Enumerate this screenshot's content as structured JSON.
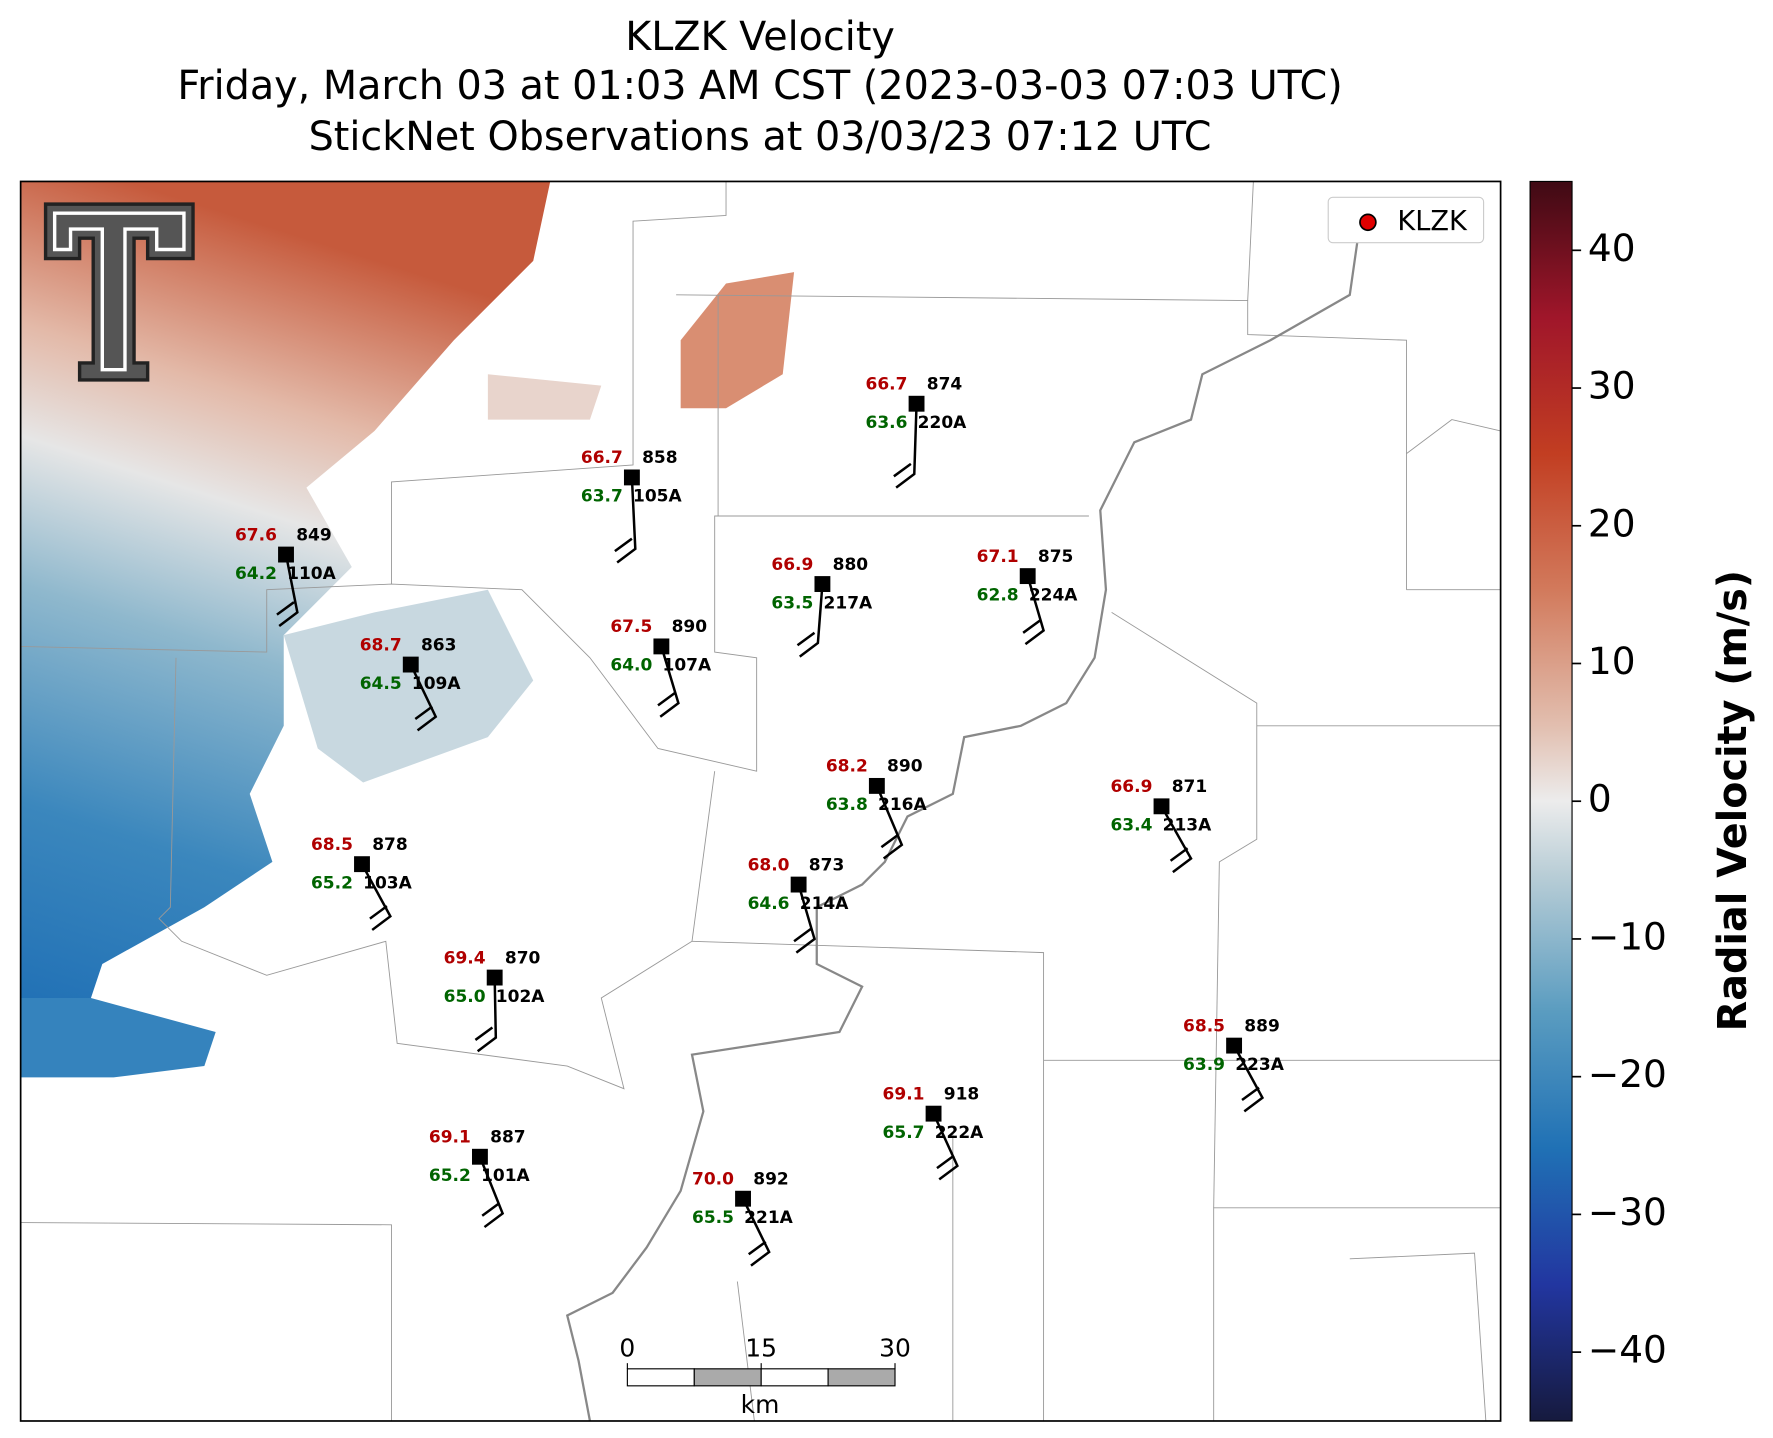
{
  "title_lines": [
    "KLZK Velocity",
    "Friday, March 03 at 01:03 AM CST (2023-03-03 07:03 UTC)",
    "StickNet Observations at 03/03/23 07:12 UTC"
  ],
  "legend": {
    "label": "KLZK",
    "color": "#e00000"
  },
  "colorbar": {
    "label": "Radial Velocity (m/s)",
    "vlim": [
      -45,
      45
    ],
    "ticks": [
      {
        "value": -40,
        "label": "−40"
      },
      {
        "value": -30,
        "label": "−30"
      },
      {
        "value": -20,
        "label": "−20"
      },
      {
        "value": -10,
        "label": "−10"
      },
      0,
      10,
      20,
      30,
      40
    ]
  },
  "scale_bar": {
    "unit": "km",
    "xlim": [
      0,
      30
    ],
    "ticks": [
      0,
      15,
      30
    ]
  },
  "stations": [
    {
      "id": "220A",
      "temperature": 66.7,
      "dewpoint": 63.6,
      "pressure": 874
    },
    {
      "id": "105A",
      "temperature": 66.7,
      "dewpoint": 63.7,
      "pressure": 858
    },
    {
      "id": "110A",
      "temperature": 67.6,
      "dewpoint": 64.2,
      "pressure": 849
    },
    {
      "id": "217A",
      "temperature": 66.9,
      "dewpoint": 63.5,
      "pressure": 880
    },
    {
      "id": "224A",
      "temperature": 67.1,
      "dewpoint": 62.8,
      "pressure": 875
    },
    {
      "id": "107A",
      "temperature": 67.5,
      "dewpoint": 64.0,
      "dewpoint_label": "64.0",
      "pressure": 890
    },
    {
      "id": "109A",
      "temperature": 68.7,
      "dewpoint": 64.5,
      "pressure": 863
    },
    {
      "id": "216A",
      "temperature": 68.2,
      "dewpoint": 63.8,
      "pressure": 890
    },
    {
      "id": "213A",
      "temperature": 66.9,
      "dewpoint": 63.4,
      "pressure": 871
    },
    {
      "id": "103A",
      "temperature": 68.5,
      "dewpoint": 65.2,
      "pressure": 878
    },
    {
      "id": "214A",
      "temperature": 68.0,
      "temperature_label": "68.0",
      "dewpoint": 64.6,
      "pressure": 873
    },
    {
      "id": "102A",
      "temperature": 69.4,
      "dewpoint": 65.0,
      "dewpoint_label": "65.0",
      "pressure": 870
    },
    {
      "id": "223A",
      "temperature": 68.5,
      "dewpoint": 63.9,
      "pressure": 889
    },
    {
      "id": "222A",
      "temperature": 69.1,
      "dewpoint": 65.7,
      "pressure": 918
    },
    {
      "id": "101A",
      "temperature": 69.1,
      "dewpoint": 65.2,
      "pressure": 887
    },
    {
      "id": "221A",
      "temperature": 70.0,
      "temperature_label": "70.0",
      "dewpoint": 65.5,
      "pressure": 892
    }
  ]
}
